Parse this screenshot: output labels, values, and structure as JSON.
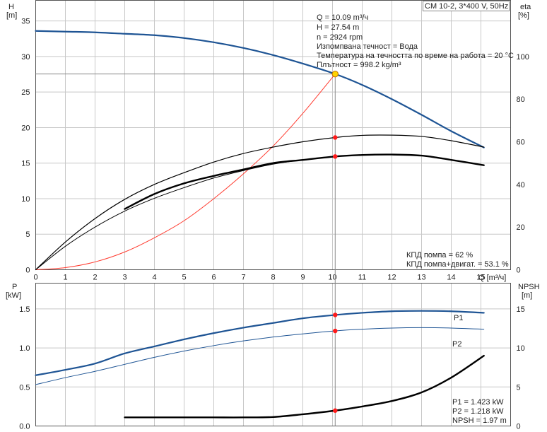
{
  "colors": {
    "head": "#1e5494",
    "efficiency": "#000000",
    "system": "#ff3b2f",
    "marker": "#ff1a1a",
    "op_marker": "#ffd400",
    "grid": "#c8c8c8",
    "power": "#1e5494",
    "npsh": "#000000"
  },
  "chart_data": [
    {
      "type": "line",
      "title": "CM 10-2, 3*400 V, 50Hz",
      "x_unit_label": "Q [m³/ч]",
      "xlim": [
        0,
        16
      ],
      "x_ticks": [
        "0",
        "1",
        "2",
        "3",
        "4",
        "5",
        "6",
        "7",
        "8",
        "9",
        "10",
        "11",
        "12",
        "13",
        "14",
        "15"
      ],
      "ylabel_left": [
        "H",
        "[m]"
      ],
      "ylim_left": [
        0,
        37.9
      ],
      "y_ticks_left": [
        "0",
        "5",
        "10",
        "15",
        "20",
        "25",
        "30",
        "35"
      ],
      "ylabel_right": [
        "eta",
        "[%]"
      ],
      "ylim_right": [
        0,
        126.3
      ],
      "y_ticks_right": [
        "0",
        "20",
        "40",
        "60",
        "80",
        "100"
      ],
      "grid": true,
      "info_lines": [
        "Q = 10.09 m³/ч",
        "H = 27.54 m",
        "n = 2924 rpm",
        "Изпомпвана течност = Вода",
        "Температура на течността по време на работа = 20 °C",
        "Плътност = 998.2 kg/m³"
      ],
      "eff_lines": [
        "КПД помпа = 62 %",
        "КПД помпа+двигат. = 53.1 %"
      ],
      "duty_point": {
        "x": 10.09,
        "y": 27.54
      },
      "series": [
        {
          "key": "H",
          "axis": "left",
          "color": "head",
          "width": 2.2,
          "dashed_start": 3,
          "x": [
            0,
            1,
            2,
            3,
            4,
            5,
            6,
            7,
            8,
            9,
            10.09,
            11,
            12,
            13,
            14,
            15.1
          ],
          "y": [
            33.6,
            33.5,
            33.4,
            33.2,
            33.0,
            32.6,
            32.0,
            31.2,
            30.2,
            29.0,
            27.54,
            26.0,
            24.0,
            21.8,
            19.5,
            17.2
          ]
        },
        {
          "key": "system",
          "axis": "left",
          "color": "system",
          "width": 1,
          "x": [
            0,
            1,
            2,
            3,
            4,
            5,
            6,
            7,
            8,
            9,
            10.09
          ],
          "y": [
            0,
            0.3,
            1.1,
            2.5,
            4.5,
            6.9,
            10.0,
            13.5,
            17.4,
            22.0,
            27.54
          ]
        },
        {
          "key": "eta_pump",
          "axis": "right",
          "color": "efficiency",
          "width": 1.2,
          "x": [
            0,
            1,
            2,
            3,
            4,
            5,
            6,
            7,
            8,
            9,
            10.09,
            11,
            12,
            13,
            14,
            15.1
          ],
          "y": [
            0,
            13,
            24,
            33,
            40,
            45.5,
            50.5,
            54.5,
            57.5,
            60,
            62,
            63,
            63.1,
            62.5,
            60.5,
            57.5
          ]
        },
        {
          "key": "eta_total",
          "axis": "right",
          "color": "efficiency",
          "width": 1,
          "x": [
            0,
            1,
            2,
            3,
            4,
            5,
            6,
            7,
            8,
            9,
            10.09,
            11,
            12,
            13,
            14,
            15.1
          ],
          "y": [
            0,
            11,
            20,
            27.5,
            33.5,
            38.5,
            43,
            46.5,
            49.5,
            51.5,
            53.1,
            53.8,
            54,
            53.5,
            51.5,
            49
          ]
        },
        {
          "key": "eta_total_bold",
          "axis": "right",
          "color": "efficiency",
          "width": 2.4,
          "x": [
            3,
            4,
            5,
            6,
            7,
            8,
            9,
            10.09,
            11,
            12,
            13,
            14,
            15.1
          ],
          "y": [
            28.5,
            35.5,
            40.5,
            44,
            47,
            50,
            51.5,
            53.1,
            53.8,
            54,
            53.5,
            51.5,
            49
          ]
        }
      ],
      "markers": [
        {
          "axis": "right",
          "x": 10.09,
          "y": 62
        },
        {
          "axis": "right",
          "x": 10.09,
          "y": 53.1
        }
      ]
    },
    {
      "type": "line",
      "ylabel_left": [
        "P",
        "[kW]"
      ],
      "ylim_left": [
        0,
        1.83
      ],
      "y_ticks_left": [
        "0.0",
        "0.5",
        "1.0",
        "1.5"
      ],
      "ylabel_right": [
        "NPSH",
        "[m]"
      ],
      "ylim_right": [
        0,
        18.3
      ],
      "y_ticks_right": [
        "0",
        "5",
        "10",
        "15"
      ],
      "grid": true,
      "series_labels": [
        "P1",
        "P2"
      ],
      "value_lines": [
        "P1 = 1.423 kW",
        "P2 = 1.218 kW",
        "NPSH = 1.97 m"
      ],
      "series": [
        {
          "key": "P1",
          "axis": "left",
          "color": "power",
          "width": 2.2,
          "x": [
            0,
            1,
            2,
            3,
            4,
            5,
            6,
            7,
            8,
            9,
            10.09,
            11,
            12,
            13,
            14,
            15.1
          ],
          "y": [
            0.65,
            0.72,
            0.8,
            0.93,
            1.02,
            1.11,
            1.19,
            1.26,
            1.32,
            1.38,
            1.423,
            1.45,
            1.47,
            1.475,
            1.47,
            1.45
          ]
        },
        {
          "key": "P2",
          "axis": "left",
          "color": "power",
          "width": 1,
          "x": [
            0,
            1,
            2,
            3,
            4,
            5,
            6,
            7,
            8,
            9,
            10.09,
            11,
            12,
            13,
            14,
            15.1
          ],
          "y": [
            0.53,
            0.62,
            0.7,
            0.79,
            0.88,
            0.96,
            1.03,
            1.09,
            1.14,
            1.18,
            1.218,
            1.24,
            1.255,
            1.26,
            1.255,
            1.24
          ]
        },
        {
          "key": "NPSH",
          "axis": "right",
          "color": "npsh",
          "width": 2.4,
          "x": [
            3,
            4,
            5,
            6,
            7,
            8,
            9,
            10.09,
            11,
            12,
            13,
            14,
            15.1
          ],
          "y": [
            1.1,
            1.1,
            1.1,
            1.1,
            1.1,
            1.15,
            1.5,
            1.97,
            2.5,
            3.2,
            4.3,
            6.2,
            9.0
          ]
        }
      ],
      "markers": [
        {
          "axis": "left",
          "x": 10.09,
          "y": 1.423
        },
        {
          "axis": "left",
          "x": 10.09,
          "y": 1.218
        },
        {
          "axis": "right",
          "x": 10.09,
          "y": 1.97
        }
      ]
    }
  ]
}
